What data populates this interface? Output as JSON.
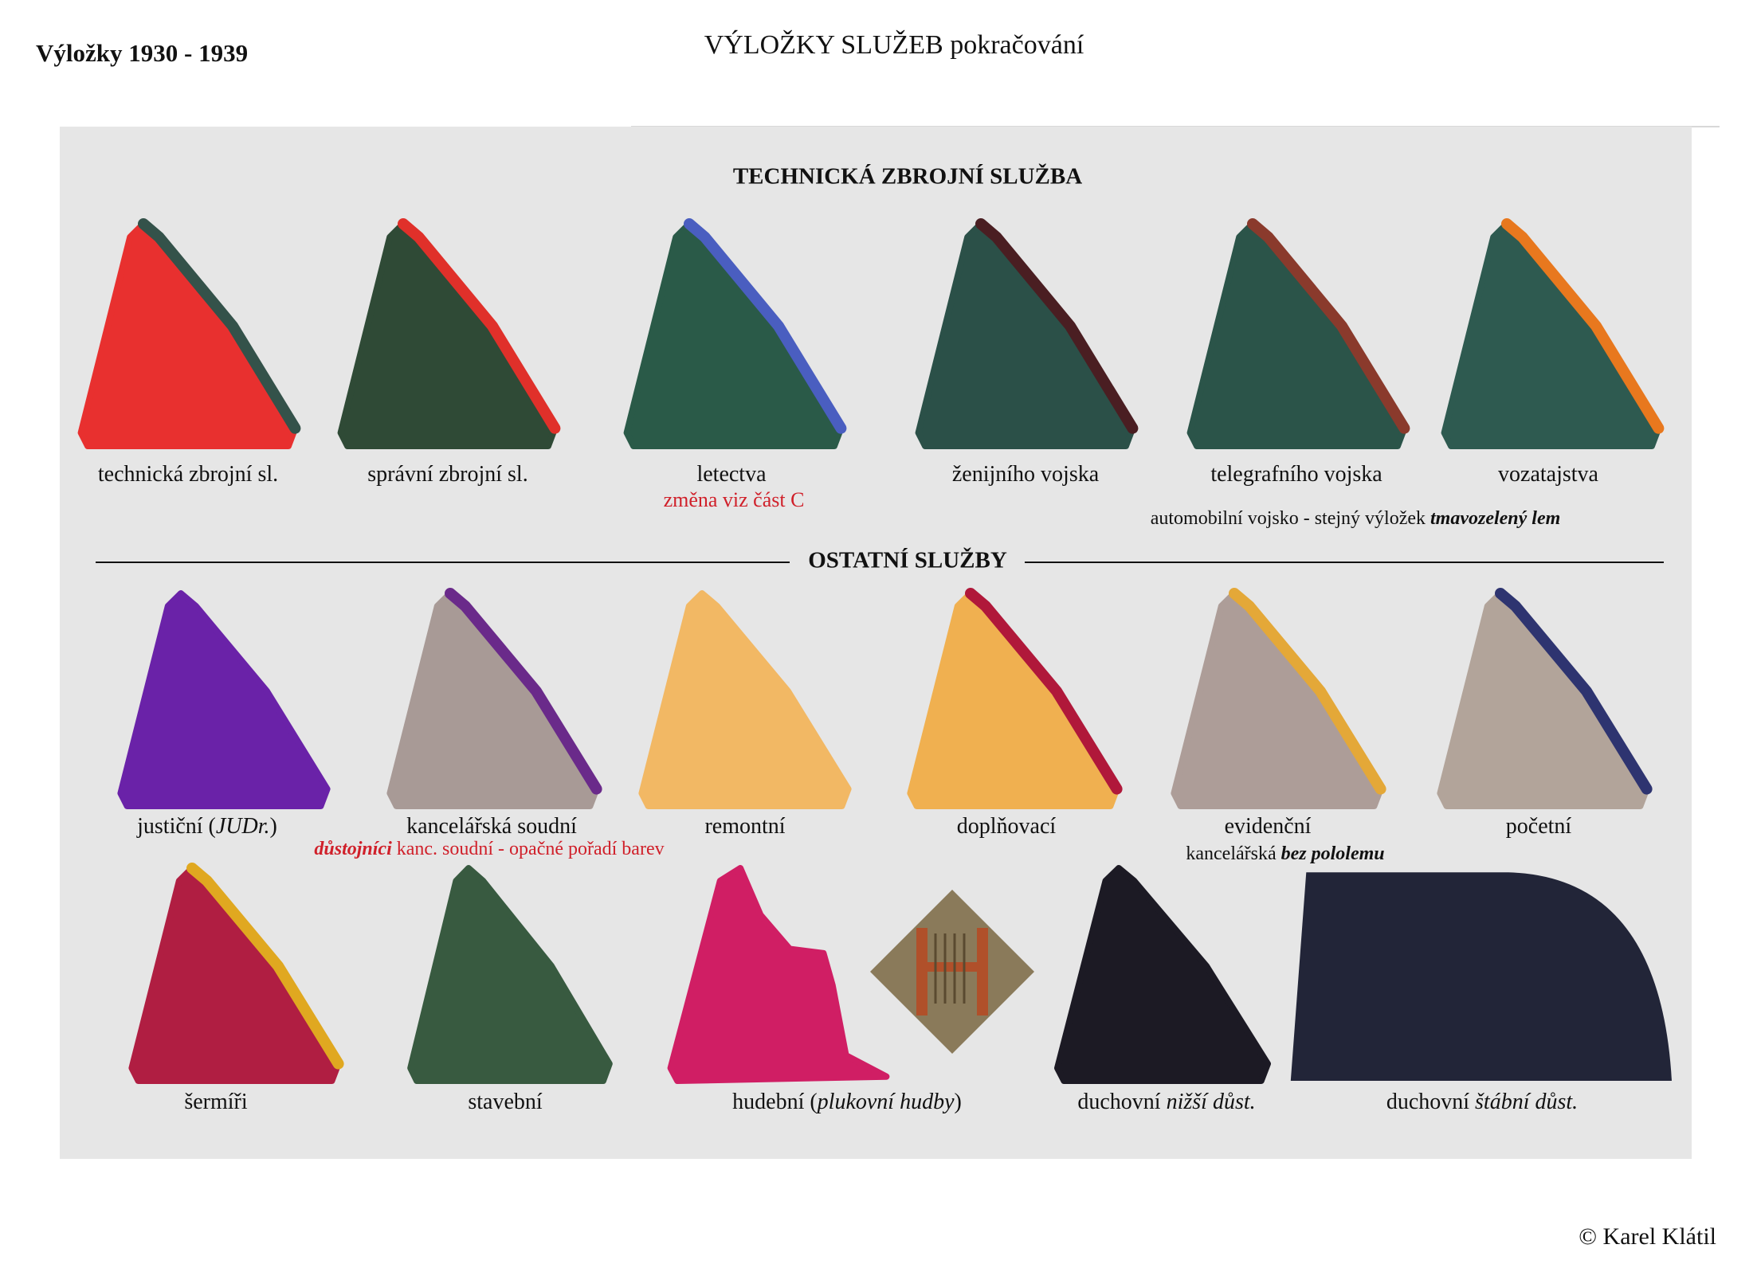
{
  "header": {
    "left_title": "Výložky 1930 - 1939",
    "title": "VÝLOŽKY SLUŽEB pokračování"
  },
  "sections": [
    {
      "title": "TECHNICKÁ ZBROJNÍ SLUŽBA",
      "items": [
        {
          "label": [
            {
              "text": "technická zbrojní sl."
            }
          ],
          "color": "#e8302f",
          "trim": "#34524a"
        },
        {
          "label": [
            {
              "text": "správní zbrojní sl."
            }
          ],
          "color": "#2f4a36",
          "trim": "#e0302a"
        },
        {
          "label": [
            {
              "text": "letectva"
            }
          ],
          "color": "#2a5a48",
          "trim": "#4a5ec0"
        },
        {
          "label": [
            {
              "text": "ženijního vojska"
            }
          ],
          "color": "#2b5048",
          "trim": "#4a1e22"
        },
        {
          "label": [
            {
              "text": "telegrafního vojska"
            }
          ],
          "color": "#2b5449",
          "trim": "#8a3a2c"
        },
        {
          "label": [
            {
              "text": "vozatajstva"
            }
          ],
          "color": "#2e5a50",
          "trim": "#e8781e"
        }
      ]
    },
    {
      "title": "OSTATNÍ SLUŽBY",
      "items": [
        {
          "label": [
            {
              "text": "justiční ("
            },
            {
              "text": "JUDr.",
              "italic": true
            },
            {
              "text": ")"
            }
          ],
          "color": "#6a22a8"
        },
        {
          "label": [
            {
              "text": "kancelářská soudní"
            }
          ],
          "color": "#a89a96",
          "trim": "#6a2a8a"
        },
        {
          "label": [
            {
              "text": "remontní"
            }
          ],
          "color": "#f2b864"
        },
        {
          "label": [
            {
              "text": "doplňovací"
            }
          ],
          "color": "#f0b050",
          "trim": "#b0183a"
        },
        {
          "label": [
            {
              "text": "evidenční"
            }
          ],
          "color": "#ad9d98",
          "trim": "#e4a838"
        },
        {
          "label": [
            {
              "text": "početní"
            }
          ],
          "color": "#b2a49a",
          "trim": "#2e3470"
        },
        {
          "label": [
            {
              "text": "šermíři"
            }
          ],
          "color": "#b01e42",
          "trim": "#e0a820"
        },
        {
          "label": [
            {
              "text": "stavební"
            }
          ],
          "color": "#385a40"
        },
        {
          "label": [
            {
              "text": "hudební ("
            },
            {
              "text": "plukovní hudby",
              "italic": true
            },
            {
              "text": ")"
            }
          ],
          "color": "#d01e64",
          "shape": "notch"
        },
        {
          "label": [
            {
              "text": "duchovní "
            },
            {
              "text": "nižší důst.",
              "italic": true
            }
          ],
          "color": "#1c1a24"
        },
        {
          "label": [
            {
              "text": "duchovní "
            },
            {
              "text": "štábní důst.",
              "italic": true
            }
          ],
          "color": "#222538",
          "shape": "arc"
        }
      ]
    }
  ],
  "notes": [
    {
      "parts": [
        {
          "text": "změna viz část C"
        }
      ],
      "color": "#d0202a"
    },
    {
      "parts": [
        {
          "text": "automobilní vojsko - stejný výložek "
        },
        {
          "text": "tmavozelený lem",
          "italic": true,
          "bold": true
        }
      ],
      "color": "#111111"
    },
    {
      "parts": [
        {
          "text": "důstojníci",
          "italic": true,
          "bold": true
        },
        {
          "text": " kanc. soudní - opačné pořadí barev"
        }
      ],
      "color": "#d0202a"
    },
    {
      "parts": [
        {
          "text": "kancelářská "
        },
        {
          "text": "bez pololemu",
          "italic": true,
          "bold": true
        }
      ],
      "color": "#111111"
    }
  ],
  "copyright": "© Karel Klátil"
}
